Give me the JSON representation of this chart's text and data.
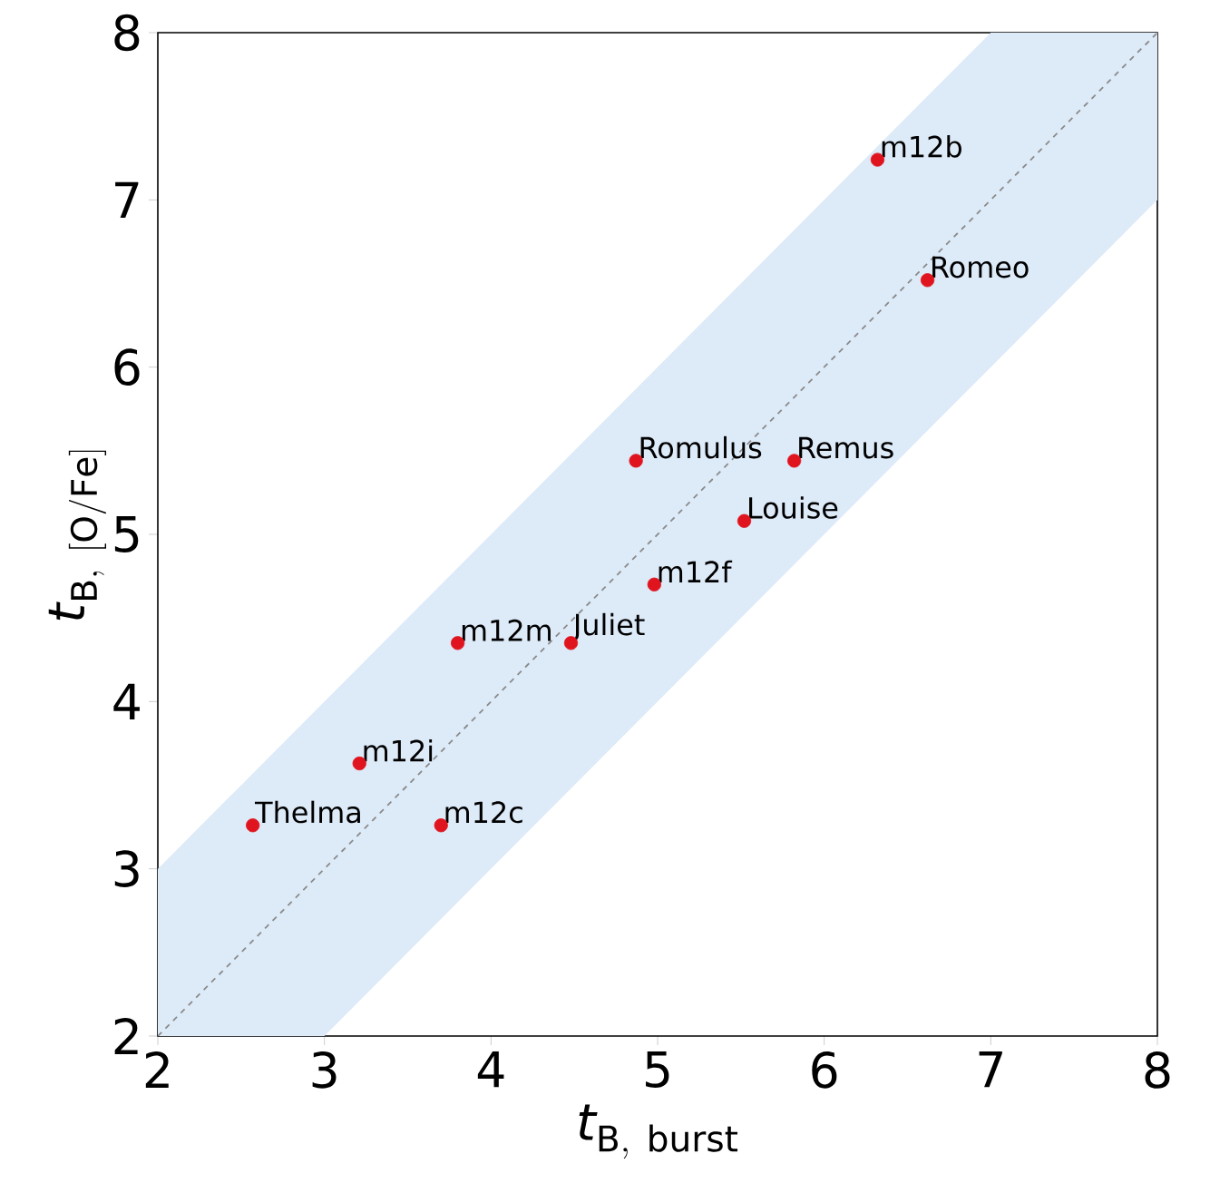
{
  "chart_data": {
    "type": "scatter",
    "xlabel": "\\mathit{t}_{\\mathrm{B,\\ burst}}",
    "ylabel": "\\mathit{t}_{\\mathrm{B,\\ [O/Fe]}}",
    "xlim": [
      2,
      8
    ],
    "ylim": [
      2,
      8
    ],
    "xticks": [
      2,
      3,
      4,
      5,
      6,
      7,
      8
    ],
    "yticks": [
      2,
      3,
      4,
      5,
      6,
      7,
      8
    ],
    "grid": false,
    "series": [
      {
        "type": "line",
        "color": "#8a8a8a",
        "line_style": "dashed",
        "x": [
          2,
          3,
          7,
          8
        ],
        "values": [
          2,
          3,
          7,
          8
        ],
        "lower": [
          2,
          2,
          6,
          7
        ],
        "upper": [
          3,
          4,
          8,
          8
        ]
      },
      {
        "color": "#e0141e",
        "x": [
          2.57,
          3.21,
          3.7,
          3.8,
          4.48,
          4.98,
          4.87,
          5.82,
          5.52,
          6.62,
          6.32
        ],
        "values": [
          3.26,
          3.63,
          3.26,
          4.35,
          4.35,
          4.7,
          5.44,
          5.44,
          5.08,
          6.52,
          7.24
        ]
      }
    ],
    "annotations": [
      {
        "text": "Thelma",
        "x": 2.57,
        "y": 3.26
      },
      {
        "text": "m12i",
        "x": 3.21,
        "y": 3.63
      },
      {
        "text": "m12c",
        "x": 3.7,
        "y": 3.26
      },
      {
        "text": "m12m",
        "x": 3.8,
        "y": 4.35
      },
      {
        "text": "Juliet",
        "x": 4.48,
        "y": 4.35
      },
      {
        "text": "m12f",
        "x": 4.98,
        "y": 4.7
      },
      {
        "text": "Romulus",
        "x": 4.87,
        "y": 5.44
      },
      {
        "text": "Remus",
        "x": 5.82,
        "y": 5.44
      },
      {
        "text": "Louise",
        "x": 5.52,
        "y": 5.08
      },
      {
        "text": "Romeo",
        "x": 6.62,
        "y": 6.52
      },
      {
        "text": "m12b",
        "x": 6.32,
        "y": 7.24
      }
    ]
  }
}
